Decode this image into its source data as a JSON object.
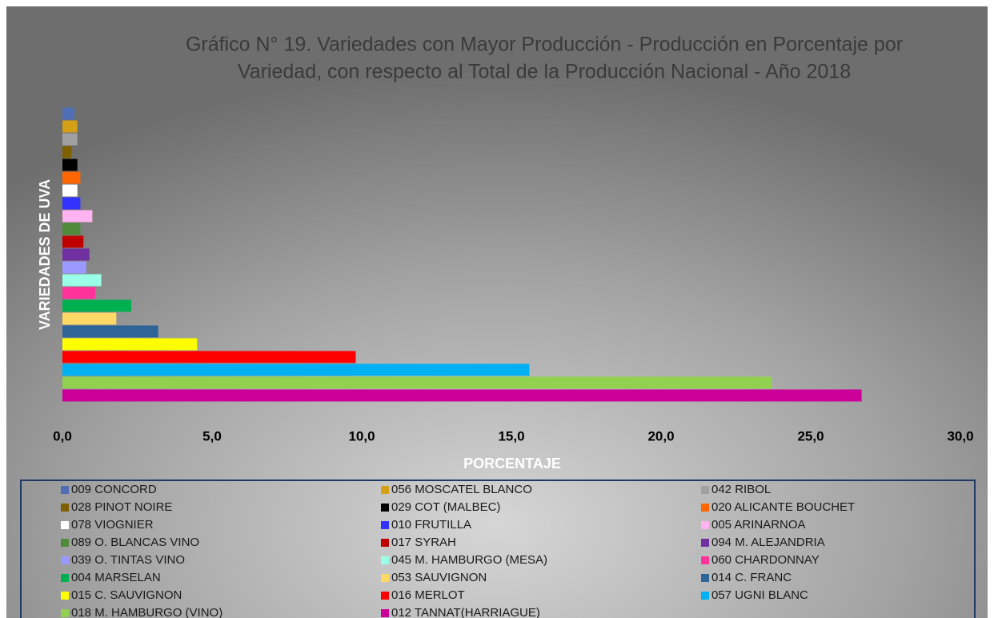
{
  "chart_data": {
    "type": "bar",
    "title": [
      "Gráfico N° 19. Variedades con Mayor Producción - Producción en Porcentaje por",
      "Variedad, con respecto al Total de la Producción Nacional - Año 2018"
    ],
    "x_label": "PORCENTAJE",
    "y_label": "VARIEDADES DE UVA",
    "orientation": "horizontal",
    "xlim": [
      0,
      30
    ],
    "xticks": [
      {
        "value": 0,
        "label": "0,0"
      },
      {
        "value": 5,
        "label": "5,0"
      },
      {
        "value": 10,
        "label": "10,0"
      },
      {
        "value": 15,
        "label": "15,0"
      },
      {
        "value": 20,
        "label": "20,0"
      },
      {
        "value": 25,
        "label": "25,0"
      },
      {
        "value": 30,
        "label": "30,0"
      }
    ],
    "grid": false,
    "legend": "bottom",
    "series": [
      {
        "name": "009 CONCORD",
        "color": "#4f6eb5",
        "values": [
          0.4
        ]
      },
      {
        "name": "056 MOSCATEL BLANCO",
        "color": "#d4a017",
        "values": [
          0.5
        ]
      },
      {
        "name": "042 RIBOL",
        "color": "#a0a0a0",
        "values": [
          0.5
        ]
      },
      {
        "name": "028 PINOT NOIRE",
        "color": "#7f6000",
        "values": [
          0.3
        ]
      },
      {
        "name": "029 COT (MALBEC)",
        "color": "#000000",
        "values": [
          0.5
        ]
      },
      {
        "name": "020 ALICANTE BOUCHET",
        "color": "#ff6600",
        "values": [
          0.6
        ]
      },
      {
        "name": "078 VIOGNIER",
        "color": "#ffffff",
        "values": [
          0.5
        ]
      },
      {
        "name": "010 FRUTILLA",
        "color": "#3333ff",
        "values": [
          0.6
        ]
      },
      {
        "name": "005 ARINARNOA",
        "color": "#ffb3f0",
        "values": [
          1.0
        ]
      },
      {
        "name": "089 O. BLANCAS VINO",
        "color": "#4e8a3a",
        "values": [
          0.6
        ]
      },
      {
        "name": "017 SYRAH",
        "color": "#c00000",
        "values": [
          0.7
        ]
      },
      {
        "name": "094 M. ALEJANDRIA",
        "color": "#7030a0",
        "values": [
          0.9
        ]
      },
      {
        "name": "039 O. TINTAS VINO",
        "color": "#9999ff",
        "values": [
          0.8
        ]
      },
      {
        "name": "045 M. HAMBURGO (MESA)",
        "color": "#99ffe6",
        "values": [
          1.3
        ]
      },
      {
        "name": "060 CHARDONNAY",
        "color": "#ff3399",
        "values": [
          1.1
        ]
      },
      {
        "name": "004 MARSELAN",
        "color": "#00b050",
        "values": [
          2.3
        ]
      },
      {
        "name": "053 SAUVIGNON",
        "color": "#ffd966",
        "values": [
          1.8
        ]
      },
      {
        "name": "014 C. FRANC",
        "color": "#2e6496",
        "values": [
          3.2
        ]
      },
      {
        "name": "015 C. SAUVIGNON",
        "color": "#ffff00",
        "values": [
          4.5
        ]
      },
      {
        "name": "016 MERLOT",
        "color": "#ff0000",
        "values": [
          9.8
        ]
      },
      {
        "name": "057 UGNI BLANC",
        "color": "#00b0f0",
        "values": [
          15.6
        ]
      },
      {
        "name": "018 M. HAMBURGO (VINO)",
        "color": "#92d050",
        "values": [
          23.7
        ]
      },
      {
        "name": "012 TANNAT(HARRIAGUE)",
        "color": "#cc0099",
        "values": [
          26.7
        ]
      }
    ]
  }
}
